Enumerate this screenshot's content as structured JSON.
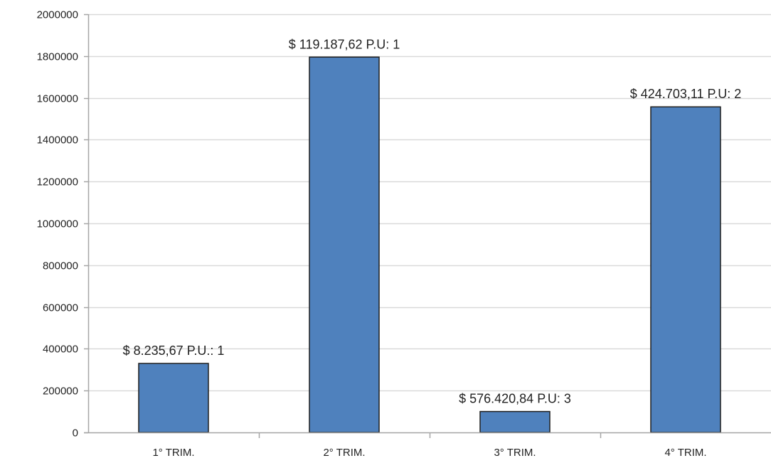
{
  "chart_data": {
    "type": "bar",
    "categories": [
      "1° TRIM.",
      "2° TRIM.",
      "3° TRIM.",
      "4° TRIM."
    ],
    "series": [
      {
        "values": [
          330000,
          1795000,
          100000,
          1557000
        ]
      }
    ],
    "data_labels": [
      "$ 8.235,67   P.U.: 1",
      "$ 119.187,62 P.U: 1",
      "$ 576.420,84 P.U: 3",
      "$ 424.703,11 P.U: 2"
    ],
    "y_ticks": [
      "0",
      "200000",
      "400000",
      "600000",
      "800000",
      "1000000",
      "1200000",
      "1400000",
      "1600000",
      "1800000",
      "2000000"
    ],
    "ylim": [
      0,
      2000000
    ],
    "grid": true,
    "colors": {
      "bar_fill": "#4f81bd",
      "bar_stroke": "#1f1f1f",
      "grid": "#d9d9d9",
      "axis": "#a6a6a6"
    }
  }
}
